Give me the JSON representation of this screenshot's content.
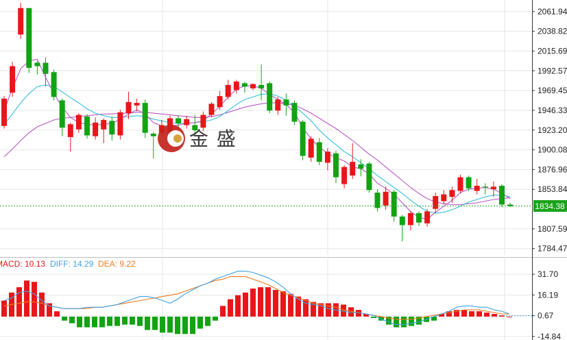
{
  "watermark": {
    "text": "金 盛"
  },
  "colors": {
    "up": "#e8161a",
    "down": "#12a312",
    "ma_cyan": "#35c0d8",
    "ma_purple": "#b957c6",
    "diff": "#3ea2e0",
    "dea": "#f07a1e",
    "grid": "#e6e6e6",
    "price_line": "#2ca02c"
  },
  "chart_data": [
    {
      "type": "candlestick",
      "y_ticks": [
        "2061.94",
        "2038.82",
        "2015.69",
        "1992.57",
        "1969.45",
        "1946.33",
        "1923.20",
        "1900.08",
        "1876.96",
        "1853.84",
        "1807.59",
        "1784.47"
      ],
      "ylim": [
        1777,
        2069
      ],
      "last_price": {
        "label": "1834.38",
        "value": 1834.38
      },
      "candles": [
        [
          1928,
          1960,
          1925,
          1963
        ],
        [
          1967,
          1998,
          1962,
          2003
        ],
        [
          2035,
          2066,
          2030,
          2072
        ],
        [
          2066,
          1996,
          1990,
          2066
        ],
        [
          2002,
          1998,
          1988,
          2004
        ],
        [
          2002,
          1989,
          1974,
          2008
        ],
        [
          1991,
          1962,
          1958,
          1994
        ],
        [
          1958,
          1926,
          1916,
          1960
        ],
        [
          1915,
          1930,
          1898,
          1932
        ],
        [
          1924,
          1941,
          1920,
          1943
        ],
        [
          1939,
          1917,
          1913,
          1942
        ],
        [
          1916,
          1932,
          1912,
          1938
        ],
        [
          1924,
          1935,
          1908,
          1937
        ],
        [
          1934,
          1918,
          1911,
          1939
        ],
        [
          1917,
          1944,
          1912,
          1947
        ],
        [
          1943,
          1956,
          1936,
          1968
        ],
        [
          1952,
          1955,
          1945,
          1960
        ],
        [
          1955,
          1920,
          1914,
          1959
        ],
        [
          1919,
          1916,
          1890,
          1921
        ],
        [
          1920,
          1929,
          1917,
          1935
        ],
        [
          1920,
          1937,
          1915,
          1940
        ],
        [
          1937,
          1931,
          1924,
          1940
        ],
        [
          1929,
          1936,
          1925,
          1940
        ],
        [
          1929,
          1923,
          1919,
          1941
        ],
        [
          1926,
          1941,
          1922,
          1945
        ],
        [
          1941,
          1954,
          1938,
          1956
        ],
        [
          1950,
          1963,
          1947,
          1969
        ],
        [
          1962,
          1976,
          1959,
          1982
        ],
        [
          1970,
          1980,
          1966,
          1982
        ],
        [
          1978,
          1974,
          1967,
          1980
        ],
        [
          1972,
          1977,
          1970,
          1978
        ],
        [
          1976,
          1972,
          1958,
          2000
        ],
        [
          1978,
          1946,
          1943,
          1980
        ],
        [
          1946,
          1959,
          1941,
          1962
        ],
        [
          1959,
          1952,
          1940,
          1966
        ],
        [
          1955,
          1933,
          1929,
          1958
        ],
        [
          1933,
          1893,
          1888,
          1935
        ],
        [
          1891,
          1913,
          1886,
          1916
        ],
        [
          1909,
          1886,
          1882,
          1914
        ],
        [
          1885,
          1898,
          1876,
          1902
        ],
        [
          1896,
          1868,
          1861,
          1899
        ],
        [
          1860,
          1880,
          1855,
          1882
        ],
        [
          1870,
          1886,
          1866,
          1908
        ],
        [
          1883,
          1878,
          1869,
          1889
        ],
        [
          1884,
          1853,
          1850,
          1886
        ],
        [
          1850,
          1832,
          1828,
          1854
        ],
        [
          1835,
          1851,
          1830,
          1857
        ],
        [
          1851,
          1822,
          1816,
          1853
        ],
        [
          1822,
          1812,
          1793,
          1824
        ],
        [
          1812,
          1826,
          1806,
          1828
        ],
        [
          1826,
          1815,
          1811,
          1828
        ],
        [
          1814,
          1828,
          1810,
          1831
        ],
        [
          1831,
          1846,
          1826,
          1850
        ],
        [
          1840,
          1848,
          1836,
          1853
        ],
        [
          1845,
          1853,
          1838,
          1857
        ],
        [
          1852,
          1868,
          1849,
          1871
        ],
        [
          1868,
          1855,
          1852,
          1870
        ],
        [
          1852,
          1858,
          1848,
          1866
        ],
        [
          1857,
          1856,
          1848,
          1861
        ],
        [
          1854,
          1857,
          1845,
          1863
        ],
        [
          1858,
          1836,
          1833,
          1860
        ],
        [
          1836,
          1834,
          1833,
          1838
        ]
      ],
      "ma_fast": [
        1946,
        1972,
        1995,
        2004,
        2006,
        1985,
        1966,
        1950,
        1938,
        1932,
        1930,
        1929,
        1930,
        1931,
        1936,
        1942,
        1947,
        1942,
        1932,
        1928,
        1928,
        1929,
        1931,
        1932,
        1934,
        1942,
        1951,
        1962,
        1971,
        1975,
        1975,
        1972,
        1965,
        1959,
        1953,
        1944,
        1926,
        1913,
        1903,
        1896,
        1891,
        1887,
        1880,
        1878,
        1872,
        1861,
        1855,
        1848,
        1838,
        1828,
        1821,
        1819,
        1827,
        1834,
        1841,
        1850,
        1854,
        1855,
        1856,
        1854,
        1849,
        1843
      ],
      "ma_mid": [
        1930,
        1942,
        1955,
        1966,
        1974,
        1976,
        1974,
        1968,
        1961,
        1955,
        1948,
        1943,
        1940,
        1938,
        1938,
        1939,
        1940,
        1939,
        1936,
        1934,
        1932,
        1931,
        1931,
        1932,
        1933,
        1935,
        1939,
        1946,
        1953,
        1959,
        1962,
        1965,
        1966,
        1963,
        1958,
        1951,
        1943,
        1934,
        1923,
        1914,
        1906,
        1898,
        1892,
        1885,
        1878,
        1870,
        1863,
        1856,
        1849,
        1841,
        1834,
        1828,
        1826,
        1827,
        1830,
        1834,
        1839,
        1842,
        1845,
        1847,
        1847,
        1845
      ],
      "ma_slow": [
        1892,
        1901,
        1911,
        1920,
        1927,
        1931,
        1935,
        1937,
        1938,
        1939,
        1940,
        1941,
        1942,
        1942,
        1943,
        1943,
        1944,
        1944,
        1943,
        1942,
        1941,
        1940,
        1939,
        1938,
        1938,
        1939,
        1941,
        1944,
        1947,
        1950,
        1952,
        1954,
        1955,
        1955,
        1954,
        1952,
        1948,
        1943,
        1937,
        1931,
        1925,
        1918,
        1911,
        1903,
        1895,
        1888,
        1880,
        1872,
        1864,
        1856,
        1849,
        1843,
        1839,
        1837,
        1836,
        1836,
        1837,
        1838,
        1840,
        1842,
        1843,
        1844
      ]
    },
    {
      "type": "macd",
      "labels": {
        "macd": "MACD: 10.13",
        "diff": "DIFF: 14.29",
        "dea": "DEA: 9.22"
      },
      "y_ticks": [
        "31.70",
        "16.19",
        "0.67",
        "-14.84"
      ],
      "ylim": [
        -17.5,
        42
      ],
      "current_value": 0.67,
      "histogram": [
        12,
        18,
        22,
        27,
        26,
        18,
        10,
        4,
        -3,
        -5,
        -8,
        -8,
        -8,
        -8,
        -7,
        -7,
        -6,
        -6,
        -7,
        -10,
        -10,
        -12,
        -12,
        -13,
        -13,
        -13,
        -9,
        -7,
        -3,
        8,
        13,
        16,
        18,
        21,
        22,
        22,
        20,
        19,
        17,
        15,
        13,
        11,
        10,
        10,
        10,
        9,
        7,
        5,
        2,
        -1,
        -3,
        -6,
        -8,
        -8,
        -7,
        -6,
        -4,
        -3,
        2,
        4,
        5,
        5,
        4,
        4,
        3,
        2,
        1,
        0
      ],
      "diff": [
        12,
        14,
        18,
        19,
        17,
        12,
        8,
        7,
        6,
        6,
        6,
        7,
        7,
        7,
        8,
        9,
        11,
        13,
        15,
        15,
        14,
        12,
        10,
        13,
        17,
        20,
        23,
        25,
        28,
        30,
        32,
        34,
        34,
        33,
        31,
        29,
        26,
        22,
        17,
        13,
        10,
        9,
        8,
        6,
        5,
        4,
        3,
        3,
        2,
        1,
        -2,
        -4,
        -6,
        -6,
        -5,
        -4,
        -2,
        0,
        2,
        4,
        7,
        8,
        8,
        7,
        7,
        5,
        4,
        2
      ],
      "dea": [
        8,
        9,
        10,
        11,
        11,
        10,
        8,
        7,
        6,
        6,
        6,
        6,
        7,
        7,
        8,
        9,
        10,
        11,
        12,
        13,
        14,
        15,
        16,
        17,
        19,
        21,
        23,
        25,
        27,
        28,
        30,
        30,
        30,
        28,
        26,
        24,
        21,
        18,
        16,
        14,
        12,
        10,
        9,
        8,
        7,
        5,
        4,
        3,
        2,
        1,
        0,
        -1,
        -2,
        -2,
        -2,
        -1,
        0,
        1,
        2,
        3,
        4,
        5,
        5,
        5,
        4,
        3,
        2,
        2
      ]
    }
  ]
}
